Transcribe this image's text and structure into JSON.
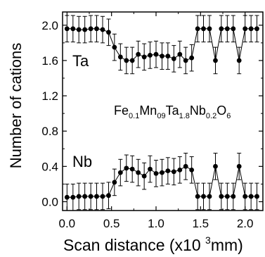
{
  "chart_data": {
    "type": "line",
    "xlabel": "Scan distance (x10 ³mm)",
    "xlabel_parts": {
      "pre": "Scan distance (x10 ",
      "sup": "3",
      "post": "mm)"
    },
    "ylabel": "Number of cations",
    "xlim": [
      -0.05,
      2.2
    ],
    "ylim": [
      -0.1,
      2.15
    ],
    "xticks": [
      0.0,
      0.5,
      1.0,
      1.5,
      2.0
    ],
    "xtick_labels": [
      "0.0",
      "0.5",
      "1.0",
      "1.5",
      "2.0"
    ],
    "yticks": [
      0.0,
      0.4,
      0.8,
      1.2,
      1.6,
      2.0
    ],
    "ytick_labels": [
      "0.0",
      "0.4",
      "0.8",
      "1.2",
      "1.6",
      "2.0"
    ],
    "grid": false,
    "error_bar": 0.15,
    "annotation": {
      "formula": "Fe0.1Mn09Ta1.8Nb0.2O6",
      "parts": [
        {
          "t": "Fe",
          "sub": false
        },
        {
          "t": "0.1",
          "sub": true
        },
        {
          "t": "Mn",
          "sub": false
        },
        {
          "t": "09",
          "sub": true
        },
        {
          "t": "Ta",
          "sub": false
        },
        {
          "t": "1.8",
          "sub": true
        },
        {
          "t": "Nb",
          "sub": false
        },
        {
          "t": "0.2",
          "sub": true
        },
        {
          "t": "O",
          "sub": false
        },
        {
          "t": "6",
          "sub": true
        }
      ]
    },
    "series": [
      {
        "name": "Ta",
        "x": [
          0.0,
          0.067,
          0.133,
          0.2,
          0.267,
          0.333,
          0.4,
          0.467,
          0.533,
          0.6,
          0.667,
          0.733,
          0.8,
          0.867,
          0.933,
          1.0,
          1.067,
          1.133,
          1.2,
          1.267,
          1.333,
          1.4,
          1.467,
          1.533,
          1.6,
          1.667,
          1.733,
          1.8,
          1.867,
          1.933,
          2.0,
          2.067,
          2.133
        ],
        "y": [
          1.96,
          1.96,
          1.95,
          1.95,
          1.96,
          1.96,
          1.95,
          1.92,
          1.75,
          1.64,
          1.6,
          1.6,
          1.67,
          1.64,
          1.66,
          1.67,
          1.65,
          1.65,
          1.62,
          1.67,
          1.6,
          1.63,
          1.96,
          1.96,
          1.96,
          1.6,
          1.96,
          1.96,
          1.96,
          1.6,
          1.96,
          1.96,
          1.96
        ]
      },
      {
        "name": "Nb",
        "x": [
          0.0,
          0.067,
          0.133,
          0.2,
          0.267,
          0.333,
          0.4,
          0.467,
          0.533,
          0.6,
          0.667,
          0.733,
          0.8,
          0.867,
          0.933,
          1.0,
          1.067,
          1.133,
          1.2,
          1.267,
          1.333,
          1.4,
          1.467,
          1.533,
          1.6,
          1.667,
          1.733,
          1.8,
          1.867,
          1.933,
          2.0,
          2.067,
          2.133
        ],
        "y": [
          0.05,
          0.05,
          0.06,
          0.06,
          0.06,
          0.06,
          0.06,
          0.07,
          0.22,
          0.33,
          0.38,
          0.37,
          0.33,
          0.29,
          0.37,
          0.32,
          0.33,
          0.35,
          0.34,
          0.36,
          0.4,
          0.36,
          0.06,
          0.06,
          0.06,
          0.4,
          0.06,
          0.06,
          0.06,
          0.4,
          0.06,
          0.06,
          0.06
        ]
      }
    ]
  }
}
